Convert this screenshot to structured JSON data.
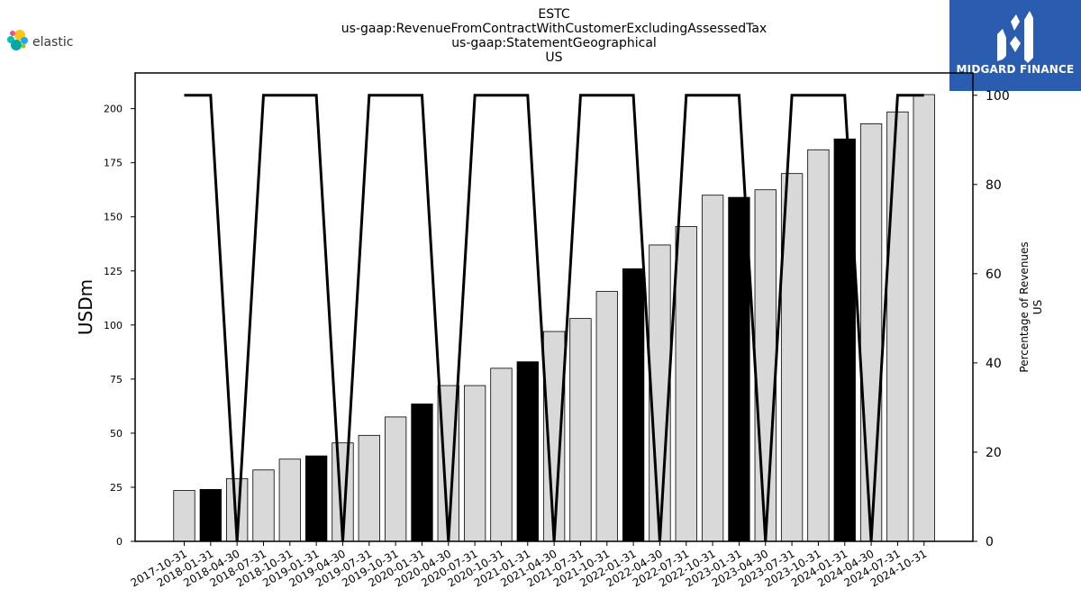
{
  "header": {
    "title_lines": [
      "ESTC",
      "us-gaap:RevenueFromContractWithCustomerExcludingAssessedTax",
      "us-gaap:StatementGeographical",
      "US"
    ]
  },
  "logo_left": {
    "text": "elastic",
    "icon": "elastic-logo-icon"
  },
  "logo_right": {
    "text": "MIDGARD FINANCE",
    "icon": "midgard-logo-icon",
    "bg_color": "#2a5db0"
  },
  "chart_data": {
    "type": "bar",
    "categories": [
      "2017-10-31",
      "2018-01-31",
      "2018-04-30",
      "2018-07-31",
      "2018-10-31",
      "2019-01-31",
      "2019-04-30",
      "2019-07-31",
      "2019-10-31",
      "2020-01-31",
      "2020-04-30",
      "2020-07-31",
      "2020-10-31",
      "2021-01-31",
      "2021-04-30",
      "2021-07-31",
      "2021-10-31",
      "2022-01-31",
      "2022-04-30",
      "2022-07-31",
      "2022-10-31",
      "2023-01-31",
      "2023-04-30",
      "2023-07-31",
      "2023-10-31",
      "2024-01-31",
      "2024-04-30",
      "2024-07-31",
      "2024-10-31"
    ],
    "series": [
      {
        "values": [
          23.5,
          24.0,
          29.0,
          33.0,
          38.0,
          39.5,
          45.5,
          49.0,
          57.5,
          63.5,
          72.0,
          72.0,
          80.0,
          83.0,
          97.0,
          103.0,
          115.5,
          126.0,
          137.0,
          145.5,
          160.0,
          159.0,
          162.5,
          170.0,
          181.0,
          186.0,
          193.0,
          198.5,
          206.5
        ],
        "highlighted": [
          false,
          true,
          false,
          false,
          false,
          true,
          false,
          false,
          false,
          true,
          false,
          false,
          false,
          true,
          false,
          false,
          false,
          true,
          false,
          false,
          false,
          true,
          false,
          false,
          false,
          true,
          false,
          false,
          false
        ]
      },
      {
        "axis": "right",
        "values": [
          100,
          100,
          0,
          100,
          100,
          100,
          0,
          100,
          100,
          100,
          0,
          100,
          100,
          100,
          0,
          100,
          100,
          100,
          0,
          100,
          100,
          100,
          0,
          100,
          100,
          100,
          0,
          100,
          100
        ]
      }
    ],
    "ylabel": "USDm",
    "ylim": [
      0,
      216.5
    ],
    "yticks": [
      0,
      25,
      50,
      75,
      100,
      125,
      150,
      175,
      200
    ],
    "y2label_lines": [
      "Percentage of Revenues",
      "US"
    ],
    "y2lim": [
      0,
      105
    ],
    "y2ticks": [
      0,
      20,
      40,
      60,
      80,
      100
    ],
    "colors": {
      "bar_default": "#d9d9d9",
      "bar_highlight": "#000000",
      "bar_edge": "#000000",
      "line": "#000000"
    },
    "grid": false,
    "legend": "none"
  }
}
